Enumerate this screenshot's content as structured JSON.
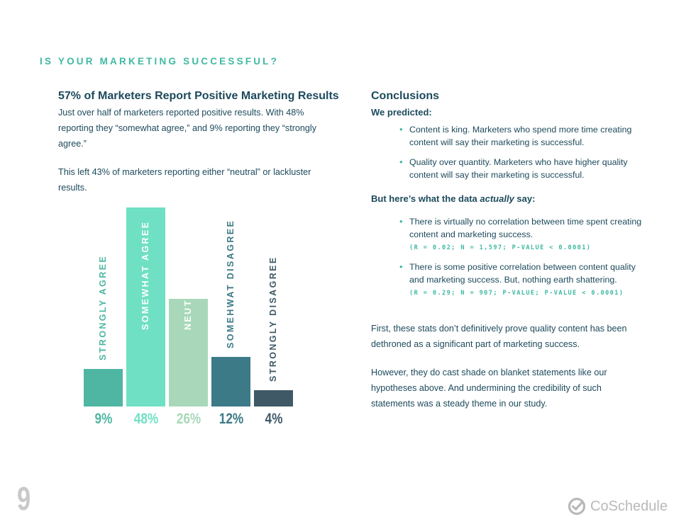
{
  "section_title": "IS YOUR MARKETING SUCCESSFUL?",
  "left": {
    "heading": "57% of Marketers Report Positive Marketing Results",
    "para1": "Just over half of marketers reported positive results. With 48% reporting they “somewhat agree,” and 9% reporting they “strongly agree.”",
    "para2": "This left 43% of marketers reporting either “neutral” or lackluster results."
  },
  "right": {
    "heading": "Conclusions",
    "predicted_label": "We predicted:",
    "predictions": [
      "Content is king. Marketers who spend more time creating content will say their marketing is successful.",
      "Quality over quantity. Marketers who have higher quality content will say their marketing is successful."
    ],
    "data_label_pre": "But here’s what the data ",
    "data_label_em": "actually",
    "data_label_post": " say:",
    "findings": [
      {
        "text": "There is virtually no correlation between time spent creating content and marketing success.",
        "stat": "(R = 0.02; N = 1,597; P-VALUE < 0.0001)"
      },
      {
        "text": "There is some positive correlation between content quality and marketing success. But, nothing earth shattering.",
        "stat": "(R = 0.29; N = 907; P-VALUE; P-VALUE < 0.0001)"
      }
    ],
    "para1": "First, these stats don’t definitively prove quality content has been dethroned as a significant part of marketing success.",
    "para2": "However, they do cast shade on blanket statements like our hypotheses above. And undermining the credibility of such statements was a steady theme in our study."
  },
  "chart_data": {
    "type": "bar",
    "categories": [
      "STRONGLY AGREE",
      "SOMEWHAT  AGREE",
      "NEUTRAL",
      "SOMEHWAT DISAGREE",
      "STRONGLY DISAGREE"
    ],
    "values": [
      9,
      48,
      26,
      12,
      4
    ],
    "value_labels": [
      "9%",
      "48%",
      "26%",
      "12%",
      "4%"
    ],
    "colors": [
      "#4fb6a3",
      "#6fe0c4",
      "#a8d8b9",
      "#3b7a86",
      "#3f5966"
    ],
    "label_colors": [
      "#4fb6a3",
      "#ffffff",
      "#ffffff",
      "#3b7a86",
      "#3f5966"
    ],
    "ylim": [
      0,
      48
    ],
    "grid": false
  },
  "footer": {
    "page_number": "9",
    "brand": "CoSchedule",
    "brand_colors": {
      "gray": "#b9b9b9"
    }
  }
}
